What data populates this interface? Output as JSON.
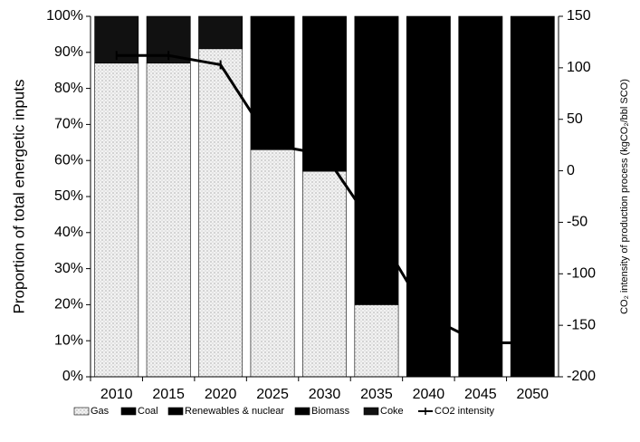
{
  "chart_data": {
    "type": "bar",
    "stacked": true,
    "categories": [
      "2010",
      "2015",
      "2020",
      "2025",
      "2030",
      "2035",
      "2040",
      "2045",
      "2050"
    ],
    "ylabel": "Proportion of total energetic inputs",
    "y2label": "CO₂ intensity of production process (kgCO₂/bbl SCO)",
    "ylim": [
      0,
      100
    ],
    "yticks": [
      {
        "value": 0,
        "label": "0%"
      },
      {
        "value": 10,
        "label": "10%"
      },
      {
        "value": 20,
        "label": "20%"
      },
      {
        "value": 30,
        "label": "30%"
      },
      {
        "value": 40,
        "label": "40%"
      },
      {
        "value": 50,
        "label": "50%"
      },
      {
        "value": 60,
        "label": "60%"
      },
      {
        "value": 70,
        "label": "70%"
      },
      {
        "value": 80,
        "label": "80%"
      },
      {
        "value": 90,
        "label": "90%"
      },
      {
        "value": 100,
        "label": "100%"
      }
    ],
    "y2lim": [
      -200,
      150
    ],
    "y2ticks": [
      -200,
      -150,
      -100,
      -50,
      0,
      50,
      100,
      150
    ],
    "series": [
      {
        "name": "Gas",
        "color": "#ececec",
        "values": [
          87,
          87,
          91,
          63,
          57,
          20,
          0,
          0,
          0
        ]
      },
      {
        "name": "Coal",
        "color": "#000000",
        "values": [
          0,
          0,
          0,
          0,
          0,
          0,
          0,
          0,
          0
        ]
      },
      {
        "name": "Renewables & nuclear",
        "color": "#000000",
        "values": [
          0,
          0,
          0,
          0,
          0,
          0,
          0,
          0,
          0
        ]
      },
      {
        "name": "Biomass",
        "color": "#000000",
        "values": [
          0,
          0,
          0,
          37,
          43,
          80,
          100,
          100,
          100
        ]
      },
      {
        "name": "Coke",
        "color": "#111111",
        "values": [
          13,
          13,
          9,
          0,
          0,
          0,
          0,
          0,
          0
        ]
      },
      {
        "name": "CO2 intensity",
        "color": "#000000",
        "type": "line",
        "axis": "y2",
        "values": [
          112,
          112,
          103,
          25,
          16,
          -58,
          -142,
          -167,
          -167
        ]
      }
    ],
    "legend": "bottom"
  }
}
